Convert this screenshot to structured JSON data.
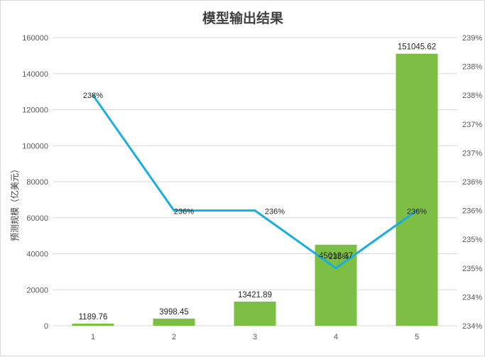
{
  "chart_data": {
    "type": "bar",
    "title": "模型输出结果",
    "xlabel": "",
    "ylabel": "预测规模（亿美元）",
    "categories": [
      "1",
      "2",
      "3",
      "4",
      "5"
    ],
    "series": [
      {
        "type": "bar",
        "axis": "left",
        "values": [
          1189.76,
          3998.45,
          13421.89,
          45012.37,
          151045.62
        ],
        "labels": [
          "1189.76",
          "3998.45",
          "13421.89",
          "45012.37",
          "151045.62"
        ],
        "color": "#7cbf44"
      },
      {
        "type": "line",
        "axis": "right",
        "values": [
          238.0,
          236.0,
          236.0,
          235.0,
          236.0
        ],
        "labels": [
          "238%",
          "236%",
          "236%",
          "235%",
          "236%"
        ],
        "color": "#19aee0"
      }
    ],
    "ylim": [
      0,
      160000
    ],
    "yticks": [
      "0",
      "20000",
      "40000",
      "60000",
      "80000",
      "100000",
      "120000",
      "140000",
      "160000"
    ],
    "y2lim": [
      234.0,
      239.0
    ],
    "y2ticks": [
      "234%",
      "234%",
      "235%",
      "235%",
      "236%",
      "236%",
      "237%",
      "237%",
      "238%",
      "238%",
      "239%"
    ],
    "grid": true,
    "gridColor": "#d9d9d9"
  }
}
